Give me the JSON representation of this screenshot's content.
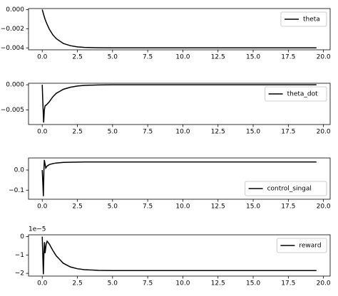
{
  "chart_data": [
    {
      "type": "line",
      "legend": "upper right",
      "x": [
        0,
        0.1,
        0.2,
        0.3,
        0.5,
        0.75,
        1,
        1.5,
        2,
        2.5,
        3,
        4,
        5,
        7.5,
        10,
        15,
        19.5
      ],
      "series": [
        {
          "name": "theta",
          "color": "#000000",
          "values": [
            0,
            -0.00053,
            -0.001,
            -0.00139,
            -0.00204,
            -0.00263,
            -0.00304,
            -0.00354,
            -0.00377,
            -0.00389,
            -0.00395,
            -0.00399,
            -0.004,
            -0.004,
            -0.004,
            -0.004,
            -0.004
          ]
        }
      ],
      "xlim": [
        -0.975,
        20.475
      ],
      "xticks": [
        {
          "value": 0,
          "label": "0.0"
        },
        2.5,
        {
          "value": 5,
          "label": "5.0"
        },
        7.5,
        {
          "value": 10,
          "label": "10.0"
        },
        12.5,
        {
          "value": 15,
          "label": "15.0"
        },
        17.5,
        {
          "value": 20,
          "label": "20.0"
        }
      ],
      "ylim": [
        -0.0042,
        0.0001
      ],
      "yticks": [
        {
          "value": 0,
          "label": "0.000"
        },
        {
          "value": -0.002,
          "label": "−0.002"
        },
        {
          "value": -0.004,
          "label": "−0.004"
        }
      ]
    },
    {
      "type": "line",
      "legend": "upper right",
      "x": [
        0,
        0.05,
        0.1,
        0.15,
        0.2,
        0.3,
        0.5,
        0.75,
        1,
        1.5,
        2,
        2.5,
        3,
        4,
        5,
        10,
        15,
        19.5
      ],
      "series": [
        {
          "name": "theta_dot",
          "color": "#000000",
          "values": [
            0,
            -0.004,
            -0.0075,
            -0.005,
            -0.0042,
            -0.004,
            -0.0034,
            -0.0024,
            -0.0017,
            -0.0009,
            -0.0005,
            -0.00025,
            -0.00012,
            -3e-05,
            0,
            0,
            0,
            0
          ]
        }
      ],
      "xlim": [
        -0.975,
        20.475
      ],
      "xticks": [
        {
          "value": 0,
          "label": "0.0"
        },
        2.5,
        {
          "value": 5,
          "label": "5.0"
        },
        7.5,
        {
          "value": 10,
          "label": "10.0"
        },
        12.5,
        {
          "value": 15,
          "label": "15.0"
        },
        17.5,
        {
          "value": 20,
          "label": "20.0"
        }
      ],
      "ylim": [
        -0.0079,
        0.0003
      ],
      "yticks": [
        {
          "value": 0,
          "label": "0.000"
        },
        {
          "value": -0.005,
          "label": "−0.005"
        }
      ]
    },
    {
      "type": "line",
      "legend": "lower right",
      "x": [
        0,
        0.04,
        0.08,
        0.12,
        0.15,
        0.2,
        0.25,
        0.35,
        0.5,
        0.75,
        1,
        1.5,
        2,
        3,
        5,
        10,
        15,
        19.5
      ],
      "series": [
        {
          "name": "control_singal",
          "color": "#000000",
          "values": [
            0,
            -0.06,
            -0.13,
            0.0,
            0.05,
            0.03,
            0.01,
            0.02,
            0.027,
            0.032,
            0.035,
            0.038,
            0.039,
            0.04,
            0.04,
            0.04,
            0.04,
            0.04
          ]
        }
      ],
      "xlim": [
        -0.975,
        20.475
      ],
      "xticks": [
        {
          "value": 0,
          "label": "0.0"
        },
        2.5,
        {
          "value": 5,
          "label": "5.0"
        },
        7.5,
        {
          "value": 10,
          "label": "10.0"
        },
        12.5,
        {
          "value": 15,
          "label": "15.0"
        },
        17.5,
        {
          "value": 20,
          "label": "20.0"
        }
      ],
      "ylim": [
        -0.145,
        0.06
      ],
      "yticks": [
        {
          "value": 0,
          "label": "0.0"
        },
        {
          "value": -0.1,
          "label": "−0.1"
        }
      ]
    },
    {
      "type": "line",
      "legend": "upper right",
      "offset_label": "1e−5",
      "x": [
        0,
        0.04,
        0.08,
        0.12,
        0.16,
        0.2,
        0.28,
        0.35,
        0.5,
        0.75,
        1,
        1.5,
        2,
        2.5,
        3,
        4,
        5,
        7.5,
        10,
        15,
        19.5
      ],
      "series": [
        {
          "name": "reward",
          "color": "#000000",
          "values": [
            0,
            -1.0,
            -2.05,
            -0.9,
            -0.3,
            -0.9,
            -0.4,
            -0.25,
            -0.4,
            -0.75,
            -1.05,
            -1.45,
            -1.65,
            -1.75,
            -1.8,
            -1.84,
            -1.85,
            -1.85,
            -1.85,
            -1.85,
            -1.85
          ]
        }
      ],
      "xlim": [
        -0.975,
        20.475
      ],
      "xticks": [
        {
          "value": 0,
          "label": "0.0"
        },
        2.5,
        {
          "value": 5,
          "label": "5.0"
        },
        7.5,
        {
          "value": 10,
          "label": "10.0"
        },
        12.5,
        {
          "value": 15,
          "label": "15.0"
        },
        17.5,
        {
          "value": 20,
          "label": "20.0"
        }
      ],
      "ylim": [
        -2.15,
        0.1
      ],
      "yticks": [
        0,
        {
          "value": -1,
          "label": "−1"
        },
        {
          "value": -2,
          "label": "−2"
        }
      ]
    }
  ]
}
